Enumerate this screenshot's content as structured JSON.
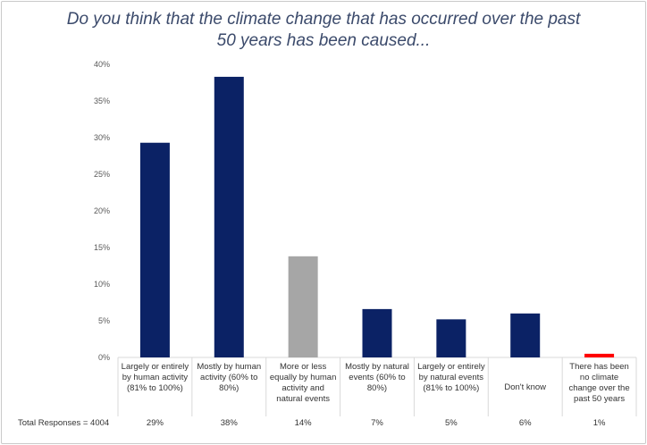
{
  "chart_data": {
    "type": "bar",
    "title": "Do you think that the climate change that has occurred over the past 50 years has been caused...",
    "title_lines": [
      "Do you think that the climate change that has occurred over the past",
      "50 years has been caused..."
    ],
    "categories": [
      "Largely or entirely by human activity (81% to 100%)",
      "Mostly by human activity (60% to 80%)",
      "More or less equally by human activity and natural events",
      "Mostly by natural events (60% to 80%)",
      "Largely or entirely by natural events (81% to 100%)",
      "Don't know",
      "There has been no climate change over the past 50 years"
    ],
    "values": [
      29.3,
      38.3,
      13.8,
      6.6,
      5.2,
      6.0,
      0.5
    ],
    "bar_colors": [
      "#0b2265",
      "#0b2265",
      "#a6a6a6",
      "#0b2265",
      "#0b2265",
      "#0b2265",
      "#ff0000"
    ],
    "yticks": [
      "0%",
      "5%",
      "10%",
      "15%",
      "20%",
      "25%",
      "30%",
      "35%",
      "40%"
    ],
    "ylim": [
      0,
      40
    ],
    "percent_row": [
      "29%",
      "38%",
      "14%",
      "7%",
      "5%",
      "6%",
      "1%"
    ],
    "total_label": "Total Responses = 4004",
    "gridlines": false
  }
}
